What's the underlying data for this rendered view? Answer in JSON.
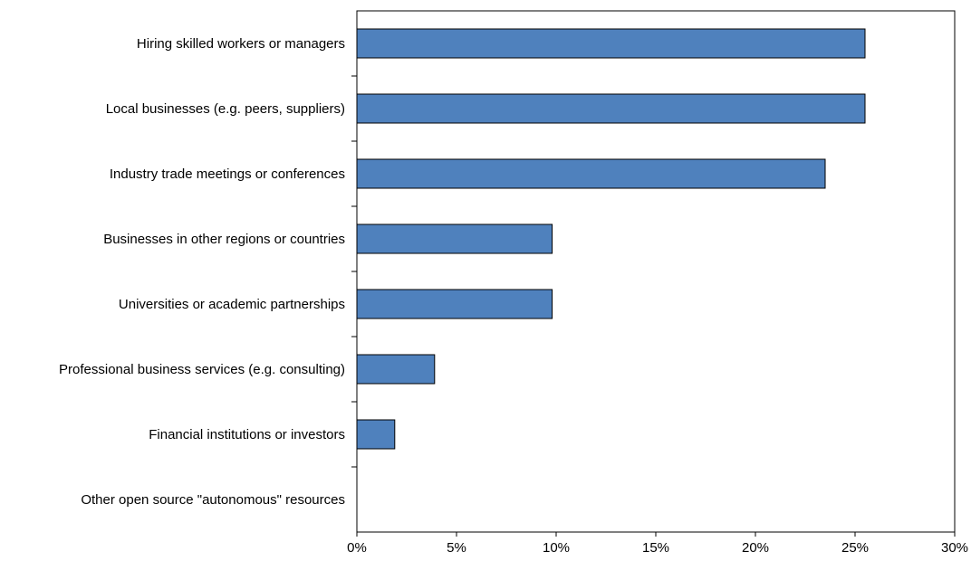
{
  "chart_data": {
    "type": "bar",
    "orientation": "horizontal",
    "categories": [
      "Hiring skilled workers or managers",
      "Local businesses (e.g. peers, suppliers)",
      "Industry trade meetings or conferences",
      "Businesses in other regions or countries",
      "Universities or academic partnerships",
      "Professional business services (e.g. consulting)",
      "Financial institutions or investors",
      "Other open source \"autonomous\" resources"
    ],
    "values": [
      25.5,
      25.5,
      23.5,
      9.8,
      9.8,
      3.9,
      1.9,
      0
    ],
    "xlim": [
      0,
      30
    ],
    "x_ticks": [
      "0%",
      "5%",
      "10%",
      "15%",
      "20%",
      "25%",
      "30%"
    ],
    "x_tick_values": [
      0,
      5,
      10,
      15,
      20,
      25,
      30
    ],
    "title": "",
    "xlabel": "",
    "ylabel": "",
    "grid": false,
    "legend": "none",
    "colors": {
      "bar_fill": "#4f81bd",
      "bar_stroke": "#000000",
      "axis": "#000000"
    }
  }
}
